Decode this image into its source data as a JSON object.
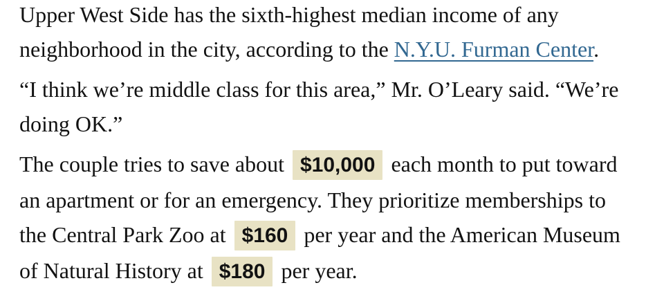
{
  "colors": {
    "background": "#ffffff",
    "text": "#121212",
    "link": "#326891",
    "highlight_background": "#e8e2c4"
  },
  "article": {
    "paragraphs": [
      {
        "lines": [
          {
            "segments": [
              {
                "type": "text",
                "text": "Upper West Side has the sixth-highest median income of any"
              }
            ]
          },
          {
            "segments": [
              {
                "type": "text",
                "text": "neighborhood in the city, according to the "
              },
              {
                "type": "link",
                "text": "N.Y.U. Furman Center"
              },
              {
                "type": "text",
                "text": "."
              }
            ]
          }
        ]
      },
      {
        "lines": [
          {
            "segments": [
              {
                "type": "text",
                "text": "“I think we’re middle class for this area,” Mr. O’Leary said. “We’re"
              }
            ]
          },
          {
            "segments": [
              {
                "type": "text",
                "text": "doing OK.”"
              }
            ]
          }
        ]
      },
      {
        "lines": [
          {
            "segments": [
              {
                "type": "text",
                "text": "The couple tries to save about "
              },
              {
                "type": "highlight",
                "text": "$10,000"
              },
              {
                "type": "text",
                "text": " each month to put toward"
              }
            ]
          },
          {
            "segments": [
              {
                "type": "text",
                "text": "an apartment or for an emergency. They prioritize memberships to"
              }
            ]
          },
          {
            "segments": [
              {
                "type": "text",
                "text": "the Central Park Zoo at "
              },
              {
                "type": "highlight",
                "text": "$160"
              },
              {
                "type": "text",
                "text": " per year and the American Museum"
              }
            ]
          },
          {
            "segments": [
              {
                "type": "text",
                "text": "of Natural History at "
              },
              {
                "type": "highlight",
                "text": "$180"
              },
              {
                "type": "text",
                "text": " per year."
              }
            ]
          }
        ]
      }
    ]
  }
}
